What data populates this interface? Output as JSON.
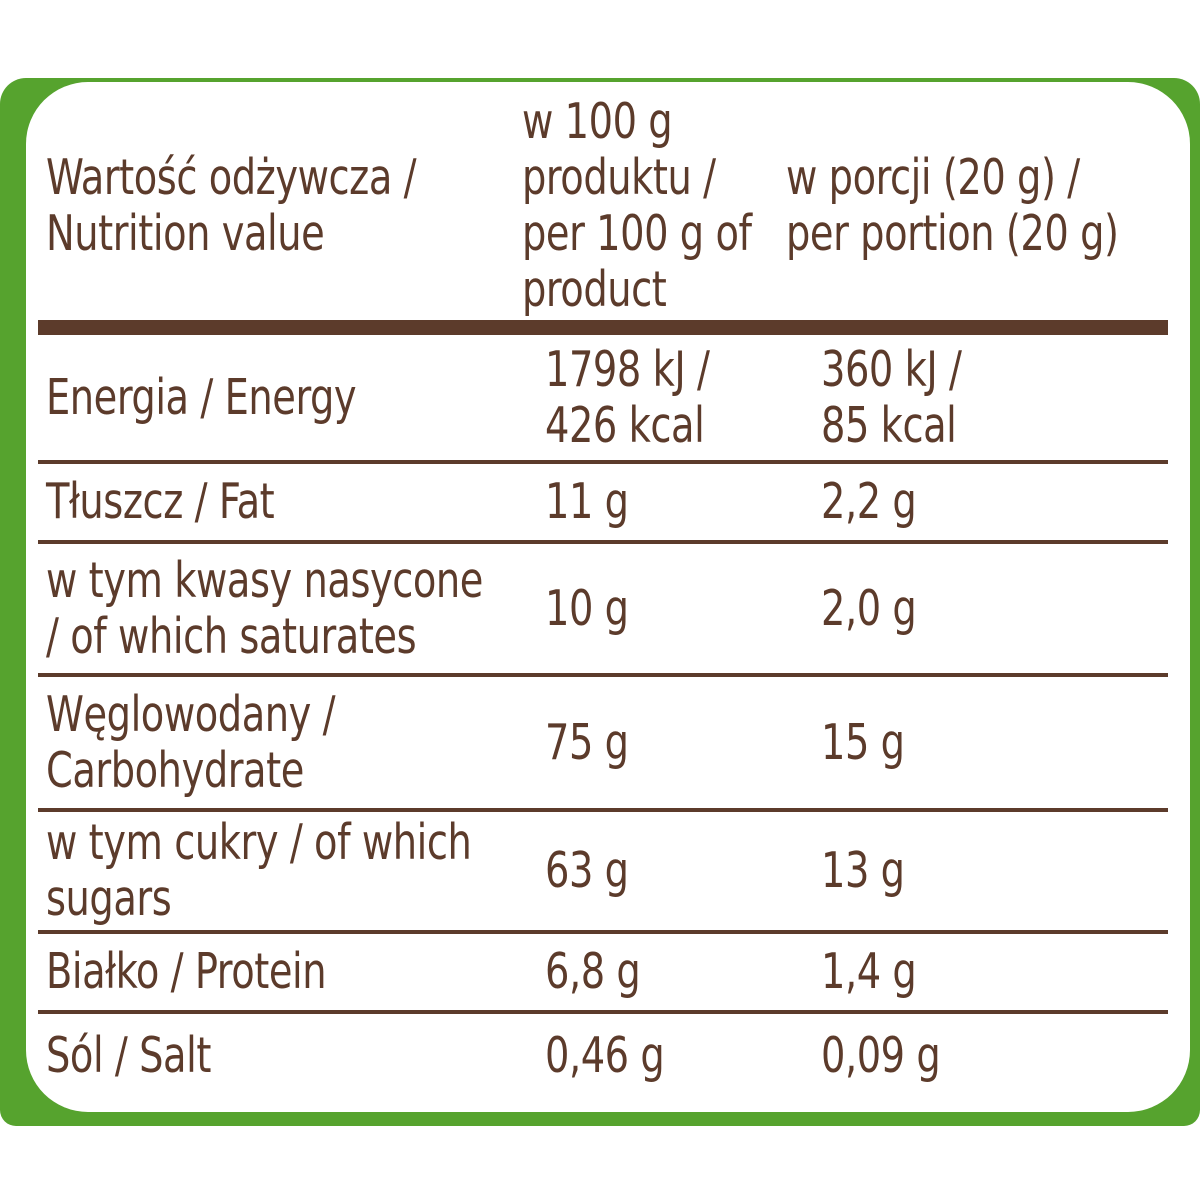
{
  "colors": {
    "frame_green": "#56a32e",
    "text_brown": "#5c3b2b"
  },
  "table": {
    "header": {
      "nutrition": "Wartość odżywcza /\nNutrition value",
      "per100": "w 100 g\nproduktu /\nper 100 g of\nproduct",
      "portion": "w porcji (20 g) /\nper portion (20 g)"
    },
    "rows": [
      {
        "label": "Energia / Energy",
        "per100": "1798 kJ /\n426 kcal",
        "portion": "360 kJ /\n85 kcal"
      },
      {
        "label": "Tłuszcz / Fat",
        "per100": "11 g",
        "portion": "2,2 g"
      },
      {
        "label": "w tym kwasy nasycone\n/ of which saturates",
        "per100": "10 g",
        "portion": "2,0 g"
      },
      {
        "label": "Węglowodany /\nCarbohydrate",
        "per100": "75 g",
        "portion": "15 g"
      },
      {
        "label": "w tym cukry / of which\nsugars",
        "per100": "63 g",
        "portion": "13 g"
      },
      {
        "label": "Białko / Protein",
        "per100": "6,8 g",
        "portion": "1,4 g"
      },
      {
        "label": "Sól / Salt",
        "per100": "0,46 g",
        "portion": "0,09 g"
      }
    ]
  }
}
